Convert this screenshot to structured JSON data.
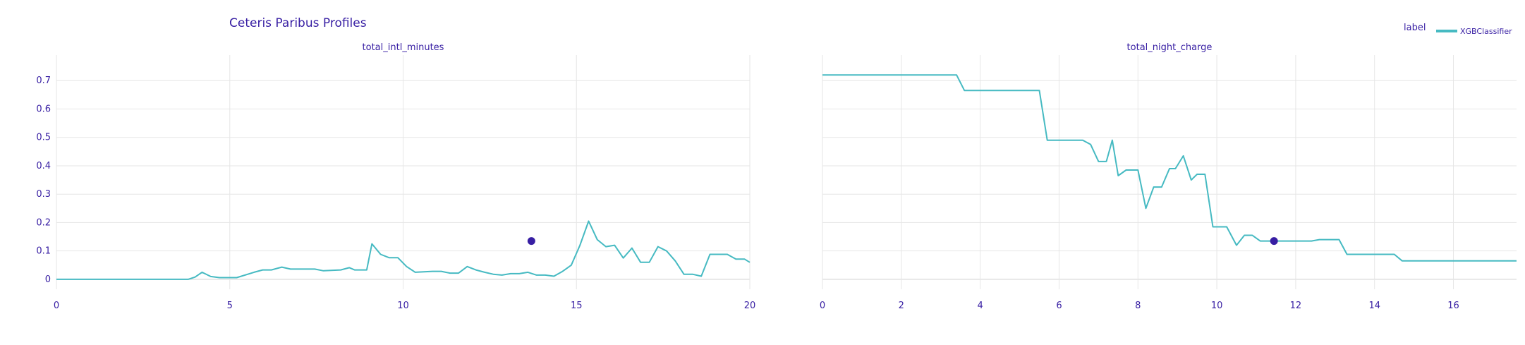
{
  "title": "Ceteris Paribus Profiles",
  "legend": {
    "title": "label",
    "items": [
      {
        "name": "XGBClassifier",
        "color": "#46bac2"
      }
    ],
    "position": "top-right"
  },
  "colors": {
    "text": "#371ea3",
    "line": "#46bac2",
    "point": "#371ea3",
    "grid": "#e6e6e6"
  },
  "chart_data": [
    {
      "type": "line",
      "subplot_title": "total_intl_minutes",
      "xlim": [
        0,
        20
      ],
      "ylim": [
        -0.035,
        0.79
      ],
      "x_ticks": [
        0,
        5,
        10,
        15,
        20
      ],
      "y_ticks": [
        0,
        0.1,
        0.2,
        0.3,
        0.4,
        0.5,
        0.6,
        0.7
      ],
      "y_tick_labels": [
        "0",
        "0.1",
        "0.2",
        "0.3",
        "0.4",
        "0.5",
        "0.6",
        "0.7"
      ],
      "grid": true,
      "series": [
        {
          "name": "XGBClassifier",
          "points": [
            [
              0,
              0.0
            ],
            [
              1,
              0.0
            ],
            [
              2,
              0.0
            ],
            [
              3,
              0.0
            ],
            [
              3.8,
              0.0
            ],
            [
              4.0,
              0.008
            ],
            [
              4.2,
              0.025
            ],
            [
              4.45,
              0.01
            ],
            [
              4.7,
              0.006
            ],
            [
              5.2,
              0.006
            ],
            [
              5.7,
              0.025
            ],
            [
              5.95,
              0.033
            ],
            [
              6.2,
              0.033
            ],
            [
              6.5,
              0.043
            ],
            [
              6.75,
              0.036
            ],
            [
              7.45,
              0.036
            ],
            [
              7.7,
              0.03
            ],
            [
              8.2,
              0.033
            ],
            [
              8.45,
              0.041
            ],
            [
              8.6,
              0.033
            ],
            [
              8.95,
              0.033
            ],
            [
              9.1,
              0.125
            ],
            [
              9.35,
              0.088
            ],
            [
              9.6,
              0.076
            ],
            [
              9.85,
              0.076
            ],
            [
              10.1,
              0.045
            ],
            [
              10.35,
              0.025
            ],
            [
              10.85,
              0.028
            ],
            [
              11.1,
              0.028
            ],
            [
              11.35,
              0.022
            ],
            [
              11.6,
              0.022
            ],
            [
              11.85,
              0.045
            ],
            [
              12.1,
              0.033
            ],
            [
              12.35,
              0.025
            ],
            [
              12.6,
              0.018
            ],
            [
              12.85,
              0.015
            ],
            [
              13.1,
              0.02
            ],
            [
              13.35,
              0.02
            ],
            [
              13.6,
              0.025
            ],
            [
              13.85,
              0.015
            ],
            [
              14.1,
              0.015
            ],
            [
              14.35,
              0.011
            ],
            [
              14.6,
              0.028
            ],
            [
              14.85,
              0.05
            ],
            [
              15.1,
              0.12
            ],
            [
              15.35,
              0.205
            ],
            [
              15.6,
              0.14
            ],
            [
              15.85,
              0.115
            ],
            [
              16.1,
              0.12
            ],
            [
              16.35,
              0.075
            ],
            [
              16.6,
              0.11
            ],
            [
              16.85,
              0.06
            ],
            [
              17.1,
              0.06
            ],
            [
              17.35,
              0.115
            ],
            [
              17.6,
              0.1
            ],
            [
              17.85,
              0.065
            ],
            [
              18.1,
              0.018
            ],
            [
              18.35,
              0.018
            ],
            [
              18.6,
              0.011
            ],
            [
              18.85,
              0.088
            ],
            [
              19.1,
              0.088
            ],
            [
              19.35,
              0.088
            ],
            [
              19.6,
              0.071
            ],
            [
              19.85,
              0.071
            ],
            [
              20,
              0.06
            ]
          ]
        }
      ],
      "observation": {
        "x": 13.7,
        "y": 0.135
      }
    },
    {
      "type": "line",
      "subplot_title": "total_night_charge",
      "xlim": [
        0,
        17.6
      ],
      "ylim": [
        -0.035,
        0.79
      ],
      "x_ticks": [
        0,
        2,
        4,
        6,
        8,
        10,
        12,
        14,
        16
      ],
      "grid": true,
      "series": [
        {
          "name": "XGBClassifier",
          "points": [
            [
              0,
              0.72
            ],
            [
              3.4,
              0.72
            ],
            [
              3.6,
              0.665
            ],
            [
              5.5,
              0.665
            ],
            [
              5.7,
              0.49
            ],
            [
              6.6,
              0.49
            ],
            [
              6.8,
              0.475
            ],
            [
              7.0,
              0.415
            ],
            [
              7.2,
              0.415
            ],
            [
              7.35,
              0.49
            ],
            [
              7.5,
              0.365
            ],
            [
              7.7,
              0.385
            ],
            [
              8.0,
              0.385
            ],
            [
              8.2,
              0.25
            ],
            [
              8.4,
              0.325
            ],
            [
              8.6,
              0.325
            ],
            [
              8.8,
              0.39
            ],
            [
              8.95,
              0.39
            ],
            [
              9.15,
              0.435
            ],
            [
              9.35,
              0.35
            ],
            [
              9.5,
              0.37
            ],
            [
              9.7,
              0.37
            ],
            [
              9.9,
              0.185
            ],
            [
              10.25,
              0.185
            ],
            [
              10.5,
              0.12
            ],
            [
              10.7,
              0.155
            ],
            [
              10.9,
              0.155
            ],
            [
              11.1,
              0.135
            ],
            [
              12.0,
              0.135
            ],
            [
              12.4,
              0.135
            ],
            [
              12.6,
              0.14
            ],
            [
              13.1,
              0.14
            ],
            [
              13.3,
              0.088
            ],
            [
              14.5,
              0.088
            ],
            [
              14.7,
              0.065
            ],
            [
              17.6,
              0.065
            ]
          ]
        }
      ],
      "observation": {
        "x": 11.45,
        "y": 0.135
      }
    }
  ]
}
